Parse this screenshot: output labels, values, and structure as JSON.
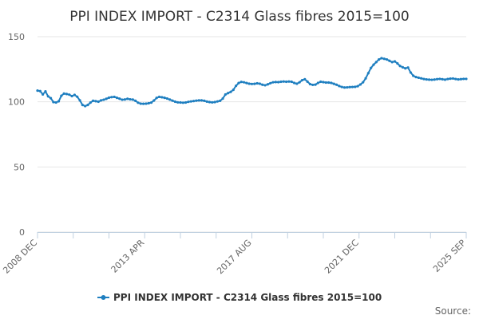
{
  "chart_data": {
    "type": "line",
    "title": "PPI INDEX IMPORT - C2314 Glass fibres 2015=100",
    "xlabel": "",
    "ylabel": "",
    "ylim": [
      0,
      150
    ],
    "yticks": [
      "0",
      "50",
      "100",
      "150"
    ],
    "xticks": [
      "2008 DEC",
      "2013 APR",
      "2017 AUG",
      "2021 DEC",
      "2025 SEP"
    ],
    "grid": true,
    "legend_position": "bottom",
    "source_label": "Source:",
    "color": "#1f7fc0",
    "series": [
      {
        "name": "PPI INDEX IMPORT - C2314 Glass fibres 2015=100",
        "x_start": "2008 DEC",
        "x_end": "2025 SEP",
        "values": [
          108.6,
          108.2,
          105.7,
          108.0,
          104.2,
          102.8,
          99.8,
          99.5,
          100.4,
          104.6,
          106.3,
          106.0,
          105.5,
          104.4,
          105.3,
          103.9,
          101.1,
          97.6,
          96.7,
          97.6,
          99.4,
          100.8,
          100.5,
          100.1,
          101.1,
          101.6,
          102.3,
          103.2,
          103.6,
          103.8,
          103.1,
          102.4,
          101.6,
          101.8,
          102.3,
          101.9,
          101.7,
          100.8,
          99.3,
          98.6,
          98.5,
          98.6,
          98.9,
          99.4,
          101.0,
          103.0,
          103.8,
          103.5,
          103.1,
          102.5,
          101.7,
          100.9,
          100.1,
          99.6,
          99.5,
          99.3,
          99.5,
          100.0,
          100.3,
          100.6,
          100.9,
          101.1,
          101.1,
          100.8,
          100.2,
          99.8,
          99.6,
          99.8,
          100.3,
          100.8,
          102.5,
          105.6,
          106.7,
          107.6,
          109.2,
          112.3,
          114.4,
          115.3,
          115.0,
          114.4,
          113.9,
          113.7,
          113.8,
          114.2,
          113.9,
          113.1,
          112.7,
          113.4,
          114.3,
          115.0,
          115.2,
          115.1,
          115.4,
          115.6,
          115.4,
          115.6,
          115.4,
          114.5,
          113.9,
          115.0,
          116.6,
          117.3,
          115.5,
          113.6,
          113.0,
          113.2,
          114.5,
          115.4,
          115.1,
          114.8,
          114.8,
          114.5,
          113.8,
          113.1,
          112.1,
          111.4,
          111.0,
          111.1,
          111.3,
          111.4,
          111.5,
          112.0,
          113.3,
          115.0,
          118.0,
          122.0,
          126.0,
          128.5,
          130.5,
          132.5,
          133.5,
          133.0,
          132.5,
          131.5,
          130.5,
          131.0,
          129.5,
          127.5,
          126.5,
          125.7,
          126.3,
          122.5,
          120.0,
          119.0,
          118.5,
          118.0,
          117.5,
          117.2,
          117.0,
          116.9,
          117.1,
          117.4,
          117.6,
          117.3,
          117.0,
          117.5,
          117.8,
          117.9,
          117.5,
          117.2,
          117.4,
          117.6,
          117.6
        ]
      }
    ]
  }
}
